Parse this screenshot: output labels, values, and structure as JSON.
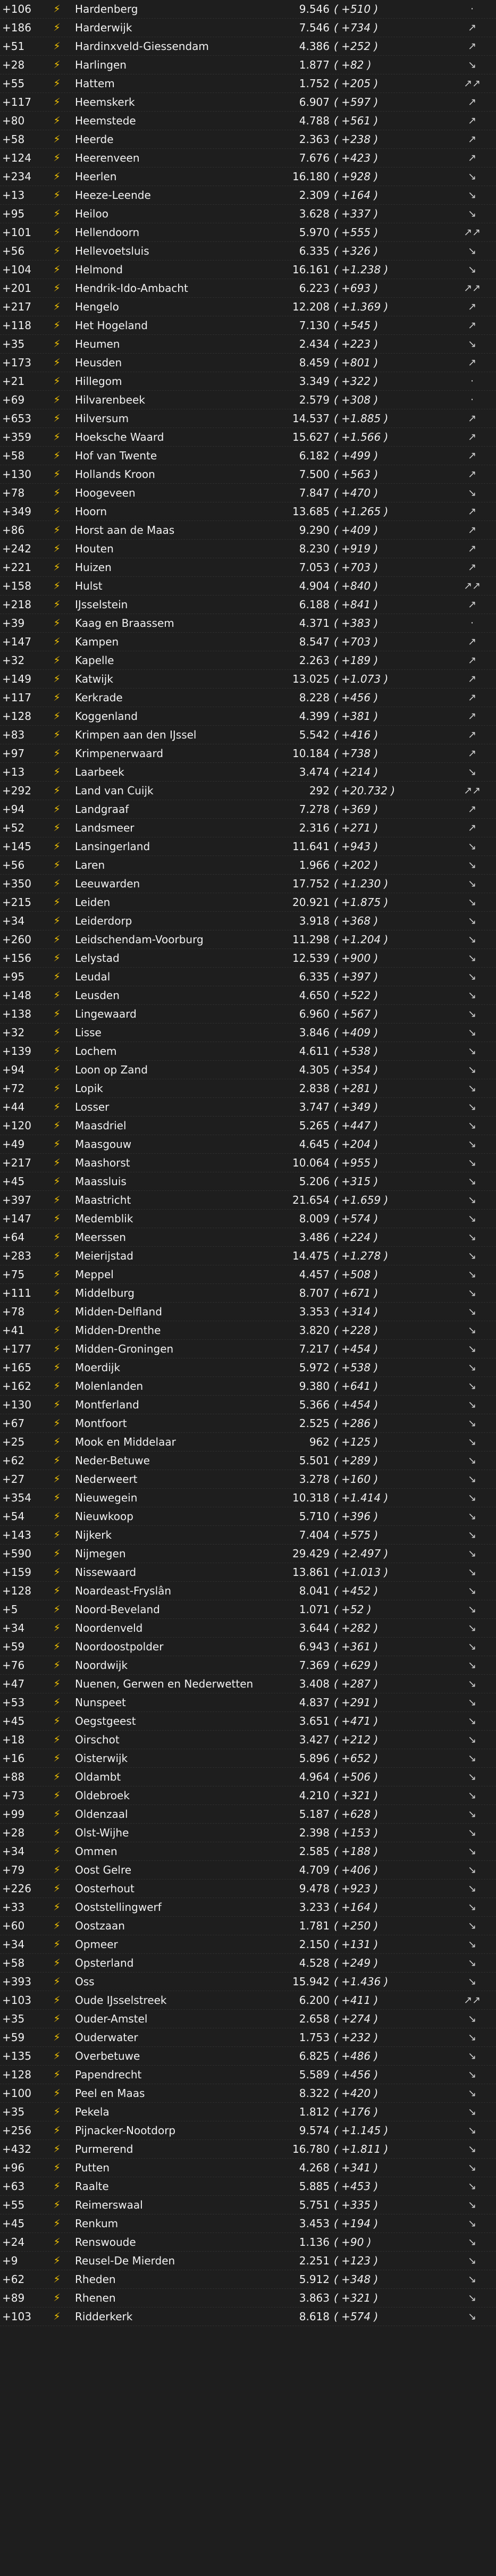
{
  "colors": {
    "background": "#1e1e1e",
    "bolt": "#f5c400",
    "text": "#f2f2f2"
  },
  "icons": {
    "bolt": "lightning-bolt-icon"
  },
  "rows": [
    {
      "delta": "+106",
      "name": "Hardenberg",
      "value": "9.546",
      "change": "( +510 )",
      "trend": "·"
    },
    {
      "delta": "+186",
      "name": "Harderwijk",
      "value": "7.546",
      "change": "( +734 )",
      "trend": "↗"
    },
    {
      "delta": "+51",
      "name": "Hardinxveld-Giessendam",
      "value": "4.386",
      "change": "( +252 )",
      "trend": "↗"
    },
    {
      "delta": "+28",
      "name": "Harlingen",
      "value": "1.877",
      "change": "( +82 )",
      "trend": "↘"
    },
    {
      "delta": "+55",
      "name": "Hattem",
      "value": "1.752",
      "change": "( +205 )",
      "trend": "↗↗"
    },
    {
      "delta": "+117",
      "name": "Heemskerk",
      "value": "6.907",
      "change": "( +597 )",
      "trend": "↗"
    },
    {
      "delta": "+80",
      "name": "Heemstede",
      "value": "4.788",
      "change": "( +561 )",
      "trend": "↗"
    },
    {
      "delta": "+58",
      "name": "Heerde",
      "value": "2.363",
      "change": "( +238 )",
      "trend": "↗"
    },
    {
      "delta": "+124",
      "name": "Heerenveen",
      "value": "7.676",
      "change": "( +423 )",
      "trend": "↗"
    },
    {
      "delta": "+234",
      "name": "Heerlen",
      "value": "16.180",
      "change": "( +928 )",
      "trend": "↘"
    },
    {
      "delta": "+13",
      "name": "Heeze-Leende",
      "value": "2.309",
      "change": "( +164 )",
      "trend": "↘"
    },
    {
      "delta": "+95",
      "name": "Heiloo",
      "value": "3.628",
      "change": "( +337 )",
      "trend": "↘"
    },
    {
      "delta": "+101",
      "name": "Hellendoorn",
      "value": "5.970",
      "change": "( +555 )",
      "trend": "↗↗"
    },
    {
      "delta": "+56",
      "name": "Hellevoetsluis",
      "value": "6.335",
      "change": "( +326 )",
      "trend": "↘"
    },
    {
      "delta": "+104",
      "name": "Helmond",
      "value": "16.161",
      "change": "( +1.238 )",
      "trend": "↘"
    },
    {
      "delta": "+201",
      "name": "Hendrik-Ido-Ambacht",
      "value": "6.223",
      "change": "( +693 )",
      "trend": "↗↗"
    },
    {
      "delta": "+217",
      "name": "Hengelo",
      "value": "12.208",
      "change": "( +1.369 )",
      "trend": "↗"
    },
    {
      "delta": "+118",
      "name": "Het Hogeland",
      "value": "7.130",
      "change": "( +545 )",
      "trend": "↗"
    },
    {
      "delta": "+35",
      "name": "Heumen",
      "value": "2.434",
      "change": "( +223 )",
      "trend": "↘"
    },
    {
      "delta": "+173",
      "name": "Heusden",
      "value": "8.459",
      "change": "( +801 )",
      "trend": "↗"
    },
    {
      "delta": "+21",
      "name": "Hillegom",
      "value": "3.349",
      "change": "( +322 )",
      "trend": "·"
    },
    {
      "delta": "+69",
      "name": "Hilvarenbeek",
      "value": "2.579",
      "change": "( +308 )",
      "trend": "·"
    },
    {
      "delta": "+653",
      "name": "Hilversum",
      "value": "14.537",
      "change": "( +1.885 )",
      "trend": "↗"
    },
    {
      "delta": "+359",
      "name": "Hoeksche Waard",
      "value": "15.627",
      "change": "( +1.566 )",
      "trend": "↗"
    },
    {
      "delta": "+58",
      "name": "Hof van Twente",
      "value": "6.182",
      "change": "( +499 )",
      "trend": "↗"
    },
    {
      "delta": "+130",
      "name": "Hollands Kroon",
      "value": "7.500",
      "change": "( +563 )",
      "trend": "↗"
    },
    {
      "delta": "+78",
      "name": "Hoogeveen",
      "value": "7.847",
      "change": "( +470 )",
      "trend": "↘"
    },
    {
      "delta": "+349",
      "name": "Hoorn",
      "value": "13.685",
      "change": "( +1.265 )",
      "trend": "↗"
    },
    {
      "delta": "+86",
      "name": "Horst aan de Maas",
      "value": "9.290",
      "change": "( +409 )",
      "trend": "↗"
    },
    {
      "delta": "+242",
      "name": "Houten",
      "value": "8.230",
      "change": "( +919 )",
      "trend": "↗"
    },
    {
      "delta": "+221",
      "name": "Huizen",
      "value": "7.053",
      "change": "( +703 )",
      "trend": "↗"
    },
    {
      "delta": "+158",
      "name": "Hulst",
      "value": "4.904",
      "change": "( +840 )",
      "trend": "↗↗"
    },
    {
      "delta": "+218",
      "name": "IJsselstein",
      "value": "6.188",
      "change": "( +841 )",
      "trend": "↗"
    },
    {
      "delta": "+39",
      "name": "Kaag en Braassem",
      "value": "4.371",
      "change": "( +383 )",
      "trend": "·"
    },
    {
      "delta": "+147",
      "name": "Kampen",
      "value": "8.547",
      "change": "( +703 )",
      "trend": "↗"
    },
    {
      "delta": "+32",
      "name": "Kapelle",
      "value": "2.263",
      "change": "( +189 )",
      "trend": "↗"
    },
    {
      "delta": "+149",
      "name": "Katwijk",
      "value": "13.025",
      "change": "( +1.073 )",
      "trend": "↗"
    },
    {
      "delta": "+117",
      "name": "Kerkrade",
      "value": "8.228",
      "change": "( +456 )",
      "trend": "↗"
    },
    {
      "delta": "+128",
      "name": "Koggenland",
      "value": "4.399",
      "change": "( +381 )",
      "trend": "↗"
    },
    {
      "delta": "+83",
      "name": "Krimpen aan den IJssel",
      "value": "5.542",
      "change": "( +416 )",
      "trend": "↗"
    },
    {
      "delta": "+97",
      "name": "Krimpenerwaard",
      "value": "10.184",
      "change": "( +738 )",
      "trend": "↗"
    },
    {
      "delta": "+13",
      "name": "Laarbeek",
      "value": "3.474",
      "change": "( +214 )",
      "trend": "↘"
    },
    {
      "delta": "+292",
      "name": "Land van Cuijk",
      "value": "292",
      "change": "( +20.732 )",
      "trend": "↗↗"
    },
    {
      "delta": "+94",
      "name": "Landgraaf",
      "value": "7.278",
      "change": "( +369 )",
      "trend": "↗"
    },
    {
      "delta": "+52",
      "name": "Landsmeer",
      "value": "2.316",
      "change": "( +271 )",
      "trend": "↗"
    },
    {
      "delta": "+145",
      "name": "Lansingerland",
      "value": "11.641",
      "change": "( +943 )",
      "trend": "↘"
    },
    {
      "delta": "+56",
      "name": "Laren",
      "value": "1.966",
      "change": "( +202 )",
      "trend": "↘"
    },
    {
      "delta": "+350",
      "name": "Leeuwarden",
      "value": "17.752",
      "change": "( +1.230 )",
      "trend": "↘"
    },
    {
      "delta": "+215",
      "name": "Leiden",
      "value": "20.921",
      "change": "( +1.875 )",
      "trend": "↘"
    },
    {
      "delta": "+34",
      "name": "Leiderdorp",
      "value": "3.918",
      "change": "( +368 )",
      "trend": "↘"
    },
    {
      "delta": "+260",
      "name": "Leidschendam-Voorburg",
      "value": "11.298",
      "change": "( +1.204 )",
      "trend": "↘"
    },
    {
      "delta": "+156",
      "name": "Lelystad",
      "value": "12.539",
      "change": "( +900 )",
      "trend": "↘"
    },
    {
      "delta": "+95",
      "name": "Leudal",
      "value": "6.335",
      "change": "( +397 )",
      "trend": "↘"
    },
    {
      "delta": "+148",
      "name": "Leusden",
      "value": "4.650",
      "change": "( +522 )",
      "trend": "↘"
    },
    {
      "delta": "+138",
      "name": "Lingewaard",
      "value": "6.960",
      "change": "( +567 )",
      "trend": "↘"
    },
    {
      "delta": "+32",
      "name": "Lisse",
      "value": "3.846",
      "change": "( +409 )",
      "trend": "↘"
    },
    {
      "delta": "+139",
      "name": "Lochem",
      "value": "4.611",
      "change": "( +538 )",
      "trend": "↘"
    },
    {
      "delta": "+94",
      "name": "Loon op Zand",
      "value": "4.305",
      "change": "( +354 )",
      "trend": "↘"
    },
    {
      "delta": "+72",
      "name": "Lopik",
      "value": "2.838",
      "change": "( +281 )",
      "trend": "↘"
    },
    {
      "delta": "+44",
      "name": "Losser",
      "value": "3.747",
      "change": "( +349 )",
      "trend": "↘"
    },
    {
      "delta": "+120",
      "name": "Maasdriel",
      "value": "5.265",
      "change": "( +447 )",
      "trend": "↘"
    },
    {
      "delta": "+49",
      "name": "Maasgouw",
      "value": "4.645",
      "change": "( +204 )",
      "trend": "↘"
    },
    {
      "delta": "+217",
      "name": "Maashorst",
      "value": "10.064",
      "change": "( +955 )",
      "trend": "↘"
    },
    {
      "delta": "+45",
      "name": "Maassluis",
      "value": "5.206",
      "change": "( +315 )",
      "trend": "↘"
    },
    {
      "delta": "+397",
      "name": "Maastricht",
      "value": "21.654",
      "change": "( +1.659 )",
      "trend": "↘"
    },
    {
      "delta": "+147",
      "name": "Medemblik",
      "value": "8.009",
      "change": "( +574 )",
      "trend": "↘"
    },
    {
      "delta": "+64",
      "name": "Meerssen",
      "value": "3.486",
      "change": "( +224 )",
      "trend": "↘"
    },
    {
      "delta": "+283",
      "name": "Meierijstad",
      "value": "14.475",
      "change": "( +1.278 )",
      "trend": "↘"
    },
    {
      "delta": "+75",
      "name": "Meppel",
      "value": "4.457",
      "change": "( +508 )",
      "trend": "↘"
    },
    {
      "delta": "+111",
      "name": "Middelburg",
      "value": "8.707",
      "change": "( +671 )",
      "trend": "↘"
    },
    {
      "delta": "+78",
      "name": "Midden-Delfland",
      "value": "3.353",
      "change": "( +314 )",
      "trend": "↘"
    },
    {
      "delta": "+41",
      "name": "Midden-Drenthe",
      "value": "3.820",
      "change": "( +228 )",
      "trend": "↘"
    },
    {
      "delta": "+177",
      "name": "Midden-Groningen",
      "value": "7.217",
      "change": "( +454 )",
      "trend": "↘"
    },
    {
      "delta": "+165",
      "name": "Moerdijk",
      "value": "5.972",
      "change": "( +538 )",
      "trend": "↘"
    },
    {
      "delta": "+162",
      "name": "Molenlanden",
      "value": "9.380",
      "change": "( +641 )",
      "trend": "↘"
    },
    {
      "delta": "+130",
      "name": "Montferland",
      "value": "5.366",
      "change": "( +454 )",
      "trend": "↘"
    },
    {
      "delta": "+67",
      "name": "Montfoort",
      "value": "2.525",
      "change": "( +286 )",
      "trend": "↘"
    },
    {
      "delta": "+25",
      "name": "Mook en Middelaar",
      "value": "962",
      "change": "( +125 )",
      "trend": "↘"
    },
    {
      "delta": "+62",
      "name": "Neder-Betuwe",
      "value": "5.501",
      "change": "( +289 )",
      "trend": "↘"
    },
    {
      "delta": "+27",
      "name": "Nederweert",
      "value": "3.278",
      "change": "( +160 )",
      "trend": "↘"
    },
    {
      "delta": "+354",
      "name": "Nieuwegein",
      "value": "10.318",
      "change": "( +1.414 )",
      "trend": "↘"
    },
    {
      "delta": "+54",
      "name": "Nieuwkoop",
      "value": "5.710",
      "change": "( +396 )",
      "trend": "↘"
    },
    {
      "delta": "+143",
      "name": "Nijkerk",
      "value": "7.404",
      "change": "( +575 )",
      "trend": "↘"
    },
    {
      "delta": "+590",
      "name": "Nijmegen",
      "value": "29.429",
      "change": "( +2.497 )",
      "trend": "↘"
    },
    {
      "delta": "+159",
      "name": "Nissewaard",
      "value": "13.861",
      "change": "( +1.013 )",
      "trend": "↘"
    },
    {
      "delta": "+128",
      "name": "Noardeast-Fryslân",
      "value": "8.041",
      "change": "( +452 )",
      "trend": "↘"
    },
    {
      "delta": "+5",
      "name": "Noord-Beveland",
      "value": "1.071",
      "change": "( +52 )",
      "trend": "↘"
    },
    {
      "delta": "+34",
      "name": "Noordenveld",
      "value": "3.644",
      "change": "( +282 )",
      "trend": "↘"
    },
    {
      "delta": "+59",
      "name": "Noordoostpolder",
      "value": "6.943",
      "change": "( +361 )",
      "trend": "↘"
    },
    {
      "delta": "+76",
      "name": "Noordwijk",
      "value": "7.369",
      "change": "( +629 )",
      "trend": "↘"
    },
    {
      "delta": "+47",
      "name": "Nuenen, Gerwen en Nederwetten",
      "value": "3.408",
      "change": "( +287 )",
      "trend": "↘"
    },
    {
      "delta": "+53",
      "name": "Nunspeet",
      "value": "4.837",
      "change": "( +291 )",
      "trend": "↘"
    },
    {
      "delta": "+45",
      "name": "Oegstgeest",
      "value": "3.651",
      "change": "( +471 )",
      "trend": "↘"
    },
    {
      "delta": "+18",
      "name": "Oirschot",
      "value": "3.427",
      "change": "( +212 )",
      "trend": "↘"
    },
    {
      "delta": "+16",
      "name": "Oisterwijk",
      "value": "5.896",
      "change": "( +652 )",
      "trend": "↘"
    },
    {
      "delta": "+88",
      "name": "Oldambt",
      "value": "4.964",
      "change": "( +506 )",
      "trend": "↘"
    },
    {
      "delta": "+73",
      "name": "Oldebroek",
      "value": "4.210",
      "change": "( +321 )",
      "trend": "↘"
    },
    {
      "delta": "+99",
      "name": "Oldenzaal",
      "value": "5.187",
      "change": "( +628 )",
      "trend": "↘"
    },
    {
      "delta": "+28",
      "name": "Olst-Wijhe",
      "value": "2.398",
      "change": "( +153 )",
      "trend": "↘"
    },
    {
      "delta": "+34",
      "name": "Ommen",
      "value": "2.585",
      "change": "( +188 )",
      "trend": "↘"
    },
    {
      "delta": "+79",
      "name": "Oost Gelre",
      "value": "4.709",
      "change": "( +406 )",
      "trend": "↘"
    },
    {
      "delta": "+226",
      "name": "Oosterhout",
      "value": "9.478",
      "change": "( +923 )",
      "trend": "↘"
    },
    {
      "delta": "+33",
      "name": "Ooststellingwerf",
      "value": "3.233",
      "change": "( +164 )",
      "trend": "↘"
    },
    {
      "delta": "+60",
      "name": "Oostzaan",
      "value": "1.781",
      "change": "( +250 )",
      "trend": "↘"
    },
    {
      "delta": "+34",
      "name": "Opmeer",
      "value": "2.150",
      "change": "( +131 )",
      "trend": "↘"
    },
    {
      "delta": "+58",
      "name": "Opsterland",
      "value": "4.528",
      "change": "( +249 )",
      "trend": "↘"
    },
    {
      "delta": "+393",
      "name": "Oss",
      "value": "15.942",
      "change": "( +1.436 )",
      "trend": "↘"
    },
    {
      "delta": "+103",
      "name": "Oude IJsselstreek",
      "value": "6.200",
      "change": "( +411 )",
      "trend": "↗↗"
    },
    {
      "delta": "+35",
      "name": "Ouder-Amstel",
      "value": "2.658",
      "change": "( +274 )",
      "trend": "↘"
    },
    {
      "delta": "+59",
      "name": "Ouderwater",
      "value": "1.753",
      "change": "( +232 )",
      "trend": "↘"
    },
    {
      "delta": "+135",
      "name": "Overbetuwe",
      "value": "6.825",
      "change": "( +486 )",
      "trend": "↘"
    },
    {
      "delta": "+128",
      "name": "Papendrecht",
      "value": "5.589",
      "change": "( +456 )",
      "trend": "↘"
    },
    {
      "delta": "+100",
      "name": "Peel en Maas",
      "value": "8.322",
      "change": "( +420 )",
      "trend": "↘"
    },
    {
      "delta": "+35",
      "name": "Pekela",
      "value": "1.812",
      "change": "( +176 )",
      "trend": "↘"
    },
    {
      "delta": "+256",
      "name": "Pijnacker-Nootdorp",
      "value": "9.574",
      "change": "( +1.145 )",
      "trend": "↘"
    },
    {
      "delta": "+432",
      "name": "Purmerend",
      "value": "16.780",
      "change": "( +1.811 )",
      "trend": "↘"
    },
    {
      "delta": "+96",
      "name": "Putten",
      "value": "4.268",
      "change": "( +341 )",
      "trend": "↘"
    },
    {
      "delta": "+63",
      "name": "Raalte",
      "value": "5.885",
      "change": "( +453 )",
      "trend": "↘"
    },
    {
      "delta": "+55",
      "name": "Reimerswaal",
      "value": "5.751",
      "change": "( +335 )",
      "trend": "↘"
    },
    {
      "delta": "+45",
      "name": "Renkum",
      "value": "3.453",
      "change": "( +194 )",
      "trend": "↘"
    },
    {
      "delta": "+24",
      "name": "Renswoude",
      "value": "1.136",
      "change": "( +90 )",
      "trend": "↘"
    },
    {
      "delta": "+9",
      "name": "Reusel-De Mierden",
      "value": "2.251",
      "change": "( +123 )",
      "trend": "↘"
    },
    {
      "delta": "+62",
      "name": "Rheden",
      "value": "5.912",
      "change": "( +348 )",
      "trend": "↘"
    },
    {
      "delta": "+89",
      "name": "Rhenen",
      "value": "3.863",
      "change": "( +321 )",
      "trend": "↘"
    },
    {
      "delta": "+103",
      "name": "Ridderkerk",
      "value": "8.618",
      "change": "( +574 )",
      "trend": "↘"
    }
  ]
}
